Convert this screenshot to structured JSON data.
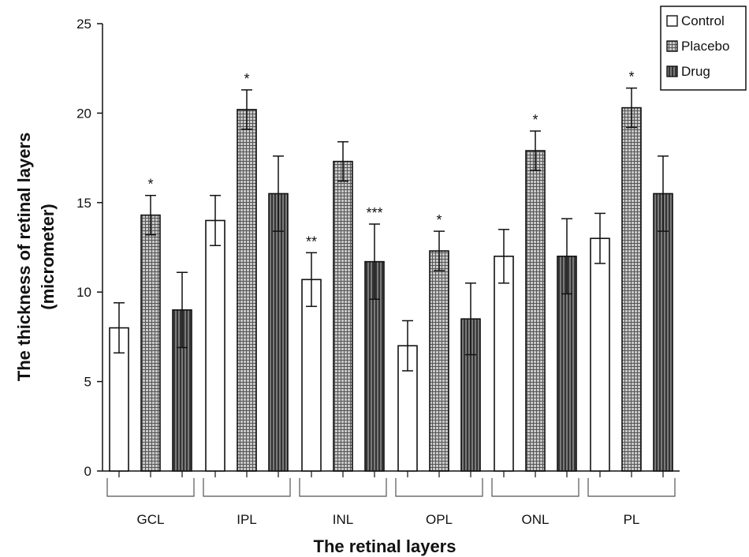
{
  "chart_data": {
    "type": "bar",
    "title": "",
    "xlabel": "The retinal layers",
    "ylabel_line1": "The thickness of retinal layers",
    "ylabel_line2": "(micrometer)",
    "ylim": [
      0,
      25
    ],
    "yticks": [
      "0",
      "5",
      "10",
      "15",
      "20",
      "25"
    ],
    "categories": [
      "GCL",
      "IPL",
      "INL",
      "OPL",
      "ONL",
      "PL"
    ],
    "series": [
      {
        "name": "Control",
        "pattern": "white",
        "values": [
          8.0,
          14.0,
          10.7,
          7.0,
          12.0,
          13.0
        ],
        "errors": [
          1.4,
          1.4,
          1.5,
          1.4,
          1.5,
          1.4
        ],
        "annotations": [
          "",
          "",
          "**",
          "",
          "",
          ""
        ]
      },
      {
        "name": "Placebo",
        "pattern": "grid",
        "values": [
          14.3,
          20.2,
          17.3,
          12.3,
          17.9,
          20.3
        ],
        "errors": [
          1.1,
          1.1,
          1.1,
          1.1,
          1.1,
          1.1
        ],
        "annotations": [
          "*",
          "*",
          "",
          "*",
          "*",
          "*"
        ]
      },
      {
        "name": "Drug",
        "pattern": "vertical-stripes",
        "values": [
          9.0,
          15.5,
          11.7,
          8.5,
          12.0,
          15.5
        ],
        "errors": [
          2.1,
          2.1,
          2.1,
          2.0,
          2.1,
          2.1
        ],
        "annotations": [
          "",
          "",
          "***",
          "",
          "",
          ""
        ]
      }
    ],
    "grid": false,
    "legend_position": "top-right",
    "colors": {
      "control_fill": "#ffffff",
      "placebo_fill": "#9a9a9a",
      "drug_fill": "#555555",
      "stroke": "#111111"
    }
  }
}
